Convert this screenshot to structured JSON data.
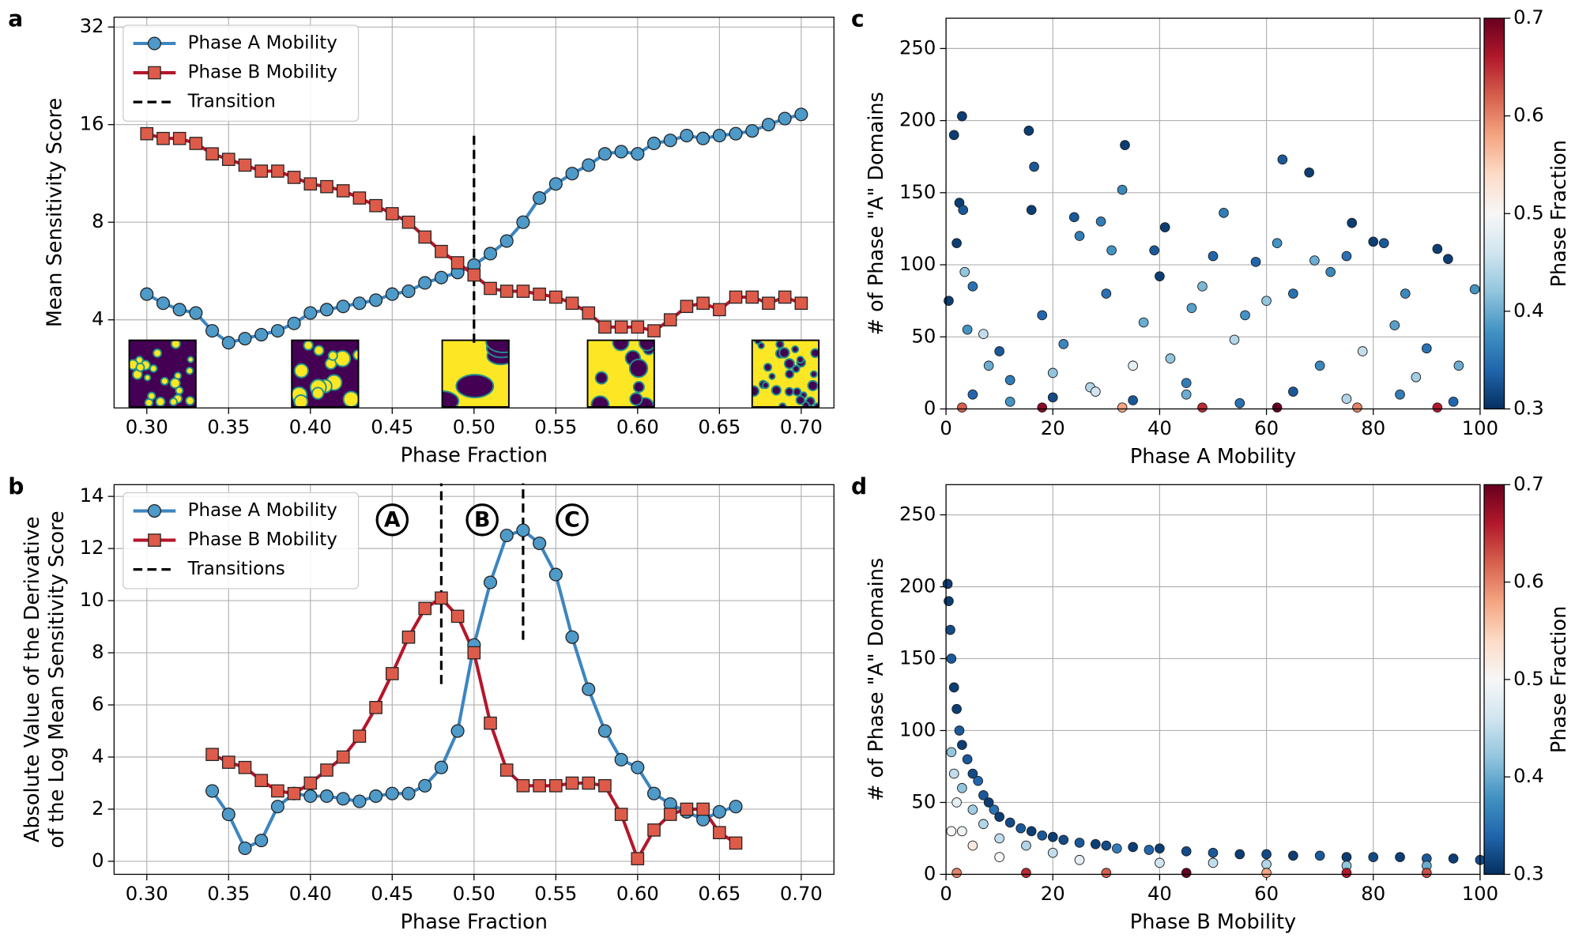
{
  "chart_data": [
    {
      "type": "line",
      "panel": "a",
      "xlabel": "Phase Fraction",
      "ylabel": [
        "Mean Sensitivity Score"
      ],
      "xlim": [
        0.28,
        0.72
      ],
      "ylim": [
        2.14,
        34.3
      ],
      "ylog": 2,
      "grid": true,
      "legend": "upper left",
      "xticks": [
        {
          "value": 0.3,
          "label": "0.30"
        },
        0.35,
        {
          "value": 0.4,
          "label": "0.40"
        },
        0.45,
        {
          "value": 0.5,
          "label": "0.50"
        },
        0.55,
        {
          "value": 0.6,
          "label": "0.60"
        },
        0.65,
        {
          "value": 0.7,
          "label": "0.70"
        }
      ],
      "yticks": [
        4,
        8,
        16,
        32
      ],
      "x": [
        0.3,
        0.31,
        0.32,
        0.33,
        0.34,
        0.35,
        0.36,
        0.37,
        0.38,
        0.39,
        0.4,
        0.41,
        0.42,
        0.43,
        0.44,
        0.45,
        0.46,
        0.47,
        0.48,
        0.49,
        0.5,
        0.51,
        0.52,
        0.53,
        0.54,
        0.55,
        0.56,
        0.57,
        0.58,
        0.59,
        0.6,
        0.61,
        0.62,
        0.63,
        0.64,
        0.65,
        0.66,
        0.67,
        0.68,
        0.69,
        0.7
      ],
      "series": [
        {
          "name": "Phase A Mobility",
          "color": "#3d85c0",
          "marker_color": "#4e9ac9",
          "marker": "circle",
          "values": [
            4.8,
            4.5,
            4.3,
            4.2,
            3.7,
            3.4,
            3.5,
            3.6,
            3.7,
            3.9,
            4.2,
            4.3,
            4.4,
            4.5,
            4.6,
            4.8,
            4.9,
            5.2,
            5.4,
            5.6,
            5.9,
            6.4,
            7.0,
            8.0,
            9.5,
            10.5,
            11.3,
            12.0,
            13.0,
            13.2,
            13.0,
            14.0,
            14.3,
            14.8,
            14.5,
            14.8,
            15.0,
            15.3,
            16.0,
            16.7,
            17.2
          ]
        },
        {
          "name": "Phase B Mobility",
          "color": "#b5162b",
          "marker_color": "#de5b4a",
          "marker": "square",
          "values": [
            15.0,
            14.5,
            14.5,
            14.0,
            13.0,
            12.5,
            12.0,
            11.5,
            11.5,
            11.0,
            10.5,
            10.3,
            10.0,
            9.5,
            9.0,
            8.5,
            8.0,
            7.2,
            6.5,
            6.0,
            5.5,
            5.0,
            4.9,
            4.9,
            4.8,
            4.7,
            4.5,
            4.2,
            3.8,
            3.8,
            3.8,
            3.7,
            4.0,
            4.4,
            4.5,
            4.3,
            4.7,
            4.7,
            4.5,
            4.7,
            4.5
          ]
        }
      ],
      "vlines": {
        "name": "Transition",
        "color": "#000000",
        "x": [
          0.5
        ],
        "ymin": [
          3.4
        ],
        "ymax": [
          14.8
        ]
      }
    },
    {
      "type": "line",
      "panel": "b",
      "xlabel": "Phase Fraction",
      "ylabel": [
        "Absolute Value of the Derivative",
        "of the Log Mean Sensitivity Score"
      ],
      "xlim": [
        0.28,
        0.72
      ],
      "ylim": [
        -0.5,
        14.45
      ],
      "grid": true,
      "legend": "upper left",
      "xticks": [
        {
          "value": 0.3,
          "label": "0.30"
        },
        0.35,
        {
          "value": 0.4,
          "label": "0.40"
        },
        0.45,
        {
          "value": 0.5,
          "label": "0.50"
        },
        0.55,
        {
          "value": 0.6,
          "label": "0.60"
        },
        0.65,
        {
          "value": 0.7,
          "label": "0.70"
        }
      ],
      "yticks": [
        0,
        2,
        4,
        6,
        8,
        10,
        12,
        14
      ],
      "x": [
        0.34,
        0.35,
        0.36,
        0.37,
        0.38,
        0.39,
        0.4,
        0.41,
        0.42,
        0.43,
        0.44,
        0.45,
        0.46,
        0.47,
        0.48,
        0.49,
        0.5,
        0.51,
        0.52,
        0.53,
        0.54,
        0.55,
        0.56,
        0.57,
        0.58,
        0.59,
        0.6,
        0.61,
        0.62,
        0.63,
        0.64,
        0.65,
        0.66
      ],
      "series": [
        {
          "name": "Phase A Mobility",
          "color": "#3d85c0",
          "marker_color": "#4e9ac9",
          "marker": "circle",
          "values": [
            2.7,
            1.8,
            0.5,
            0.8,
            2.1,
            2.6,
            2.5,
            2.5,
            2.4,
            2.3,
            2.5,
            2.6,
            2.6,
            2.9,
            3.6,
            5.0,
            8.3,
            10.7,
            12.5,
            12.7,
            12.2,
            11.0,
            8.6,
            6.6,
            5.0,
            3.9,
            3.6,
            2.6,
            2.2,
            1.9,
            1.6,
            1.9,
            2.1
          ]
        },
        {
          "name": "Phase B Mobility",
          "color": "#b5162b",
          "marker_color": "#de5b4a",
          "marker": "square",
          "values": [
            4.1,
            3.8,
            3.6,
            3.1,
            2.7,
            2.6,
            3.0,
            3.5,
            4.0,
            4.8,
            5.9,
            7.2,
            8.6,
            9.7,
            10.1,
            9.4,
            8.0,
            5.3,
            3.5,
            2.9,
            2.9,
            2.9,
            3.0,
            3.0,
            2.9,
            1.8,
            0.1,
            1.2,
            1.8,
            2.0,
            2.0,
            1.1,
            0.7
          ]
        }
      ],
      "vlines": {
        "name": "Transitions",
        "color": "#000000",
        "x": [
          0.48,
          0.53
        ],
        "ymin": [
          6.8,
          8.5
        ],
        "ymax": [
          14.5,
          14.5
        ]
      },
      "annotations": [
        {
          "text": "A",
          "x": 0.45,
          "y": 13.1
        },
        {
          "text": "B",
          "x": 0.505,
          "y": 13.1
        },
        {
          "text": "C",
          "x": 0.56,
          "y": 13.1
        }
      ]
    },
    {
      "type": "scatter",
      "panel": "c",
      "xlabel": "Phase A Mobility",
      "ylabel": [
        "# of Phase \"A\" Domains"
      ],
      "clabel": "Phase Fraction",
      "xlim": [
        0,
        100
      ],
      "ylim": [
        0,
        271
      ],
      "grid": true,
      "xticks": [
        0,
        20,
        40,
        60,
        80,
        100
      ],
      "yticks": [
        0,
        50,
        100,
        150,
        200,
        250
      ],
      "clim": [
        0.3,
        0.7
      ],
      "cticks": [
        0.3,
        0.4,
        0.5,
        0.6,
        0.7
      ],
      "colormap": [
        "#053061",
        "#2166ac",
        "#4393c3",
        "#92c5de",
        "#d1e5f0",
        "#f7f7f7",
        "#fddbc7",
        "#f4a582",
        "#d6604d",
        "#b2182b",
        "#67001f"
      ],
      "x": [
        0.5,
        1.5,
        2,
        3,
        2.5,
        3.2,
        3.5,
        4,
        5,
        7,
        8,
        10,
        12,
        15.5,
        16.5,
        16,
        18,
        20,
        22,
        24,
        25,
        27,
        29,
        30,
        31,
        33.5,
        33,
        35,
        37,
        39,
        40,
        41,
        42,
        45,
        46,
        48,
        50,
        52,
        54,
        56,
        58,
        60,
        62,
        63,
        65,
        68,
        69,
        70,
        72,
        75,
        76,
        78,
        80,
        82,
        84,
        86,
        88,
        90,
        92,
        94,
        96,
        99,
        5,
        12,
        20,
        28,
        35,
        45,
        55,
        65,
        75,
        85,
        95,
        3,
        18,
        33,
        48,
        62,
        77,
        92
      ],
      "y": [
        75,
        190,
        115,
        203,
        143,
        138,
        95,
        55,
        85,
        52,
        30,
        40,
        20,
        193,
        168,
        138,
        65,
        25,
        45,
        133,
        120,
        15,
        130,
        80,
        110,
        183,
        152,
        30,
        60,
        110,
        92,
        126,
        35,
        18,
        70,
        85,
        106,
        136,
        48,
        65,
        102,
        75,
        115,
        173,
        80,
        164,
        103,
        30,
        95,
        106,
        129,
        40,
        116,
        115,
        58,
        80,
        22,
        42,
        111,
        104,
        30,
        83,
        10,
        5,
        8,
        12,
        6,
        10,
        4,
        12,
        7,
        10,
        5,
        1,
        1,
        1,
        1,
        1,
        1,
        1
      ],
      "c": [
        0.31,
        0.31,
        0.31,
        0.31,
        0.31,
        0.33,
        0.42,
        0.38,
        0.35,
        0.45,
        0.4,
        0.33,
        0.36,
        0.31,
        0.33,
        0.31,
        0.34,
        0.42,
        0.37,
        0.33,
        0.36,
        0.44,
        0.36,
        0.35,
        0.38,
        0.31,
        0.37,
        0.48,
        0.4,
        0.33,
        0.31,
        0.31,
        0.42,
        0.36,
        0.39,
        0.41,
        0.34,
        0.36,
        0.44,
        0.38,
        0.34,
        0.42,
        0.38,
        0.33,
        0.35,
        0.31,
        0.4,
        0.37,
        0.37,
        0.35,
        0.31,
        0.45,
        0.31,
        0.33,
        0.39,
        0.37,
        0.43,
        0.35,
        0.31,
        0.31,
        0.4,
        0.38,
        0.34,
        0.38,
        0.32,
        0.46,
        0.33,
        0.4,
        0.35,
        0.33,
        0.44,
        0.36,
        0.34,
        0.62,
        0.68,
        0.58,
        0.65,
        0.7,
        0.6,
        0.66
      ]
    },
    {
      "type": "scatter",
      "panel": "d",
      "xlabel": "Phase B Mobility",
      "ylabel": [
        "# of Phase \"A\" Domains"
      ],
      "clabel": "Phase Fraction",
      "xlim": [
        0,
        100
      ],
      "ylim": [
        0,
        271
      ],
      "grid": true,
      "xticks": [
        0,
        20,
        40,
        60,
        80,
        100
      ],
      "yticks": [
        0,
        50,
        100,
        150,
        200,
        250
      ],
      "clim": [
        0.3,
        0.7
      ],
      "cticks": [
        0.3,
        0.4,
        0.5,
        0.6,
        0.7
      ],
      "colormap": [
        "#053061",
        "#2166ac",
        "#4393c3",
        "#92c5de",
        "#d1e5f0",
        "#f7f7f7",
        "#fddbc7",
        "#f4a582",
        "#d6604d",
        "#b2182b",
        "#67001f"
      ],
      "x": [
        0.3,
        0.5,
        0.8,
        1,
        1.5,
        2,
        2.5,
        1,
        1.5,
        2,
        1,
        3,
        3,
        3,
        4,
        5,
        5,
        5,
        6,
        7,
        7,
        8,
        9,
        10,
        10,
        10,
        12,
        14,
        15,
        16,
        18,
        20,
        20,
        22,
        25,
        25,
        28,
        30,
        32,
        35,
        38,
        40,
        40,
        45,
        50,
        50,
        55,
        60,
        60,
        65,
        70,
        75,
        75,
        80,
        85,
        90,
        90,
        95,
        100,
        2,
        15,
        30,
        45,
        60,
        75,
        90
      ],
      "y": [
        202,
        190,
        170,
        150,
        130,
        115,
        100,
        85,
        70,
        50,
        30,
        90,
        60,
        30,
        80,
        70,
        45,
        20,
        65,
        55,
        35,
        50,
        45,
        40,
        25,
        12,
        36,
        32,
        20,
        30,
        27,
        26,
        15,
        24,
        22,
        10,
        21,
        20,
        18,
        19,
        17,
        18,
        8,
        16,
        15,
        8,
        14,
        14,
        7,
        13,
        13,
        12,
        6,
        12,
        12,
        11,
        6,
        11,
        10,
        1,
        1,
        1,
        1,
        1,
        1,
        1
      ],
      "c": [
        0.31,
        0.31,
        0.32,
        0.33,
        0.31,
        0.31,
        0.33,
        0.42,
        0.45,
        0.48,
        0.5,
        0.31,
        0.42,
        0.49,
        0.33,
        0.32,
        0.43,
        0.52,
        0.34,
        0.33,
        0.44,
        0.31,
        0.35,
        0.31,
        0.45,
        0.5,
        0.32,
        0.33,
        0.44,
        0.31,
        0.33,
        0.31,
        0.45,
        0.32,
        0.33,
        0.48,
        0.31,
        0.32,
        0.36,
        0.31,
        0.34,
        0.31,
        0.46,
        0.32,
        0.33,
        0.45,
        0.31,
        0.32,
        0.44,
        0.31,
        0.33,
        0.31,
        0.42,
        0.32,
        0.31,
        0.33,
        0.4,
        0.31,
        0.32,
        0.6,
        0.65,
        0.62,
        0.7,
        0.58,
        0.66,
        0.63
      ]
    }
  ]
}
